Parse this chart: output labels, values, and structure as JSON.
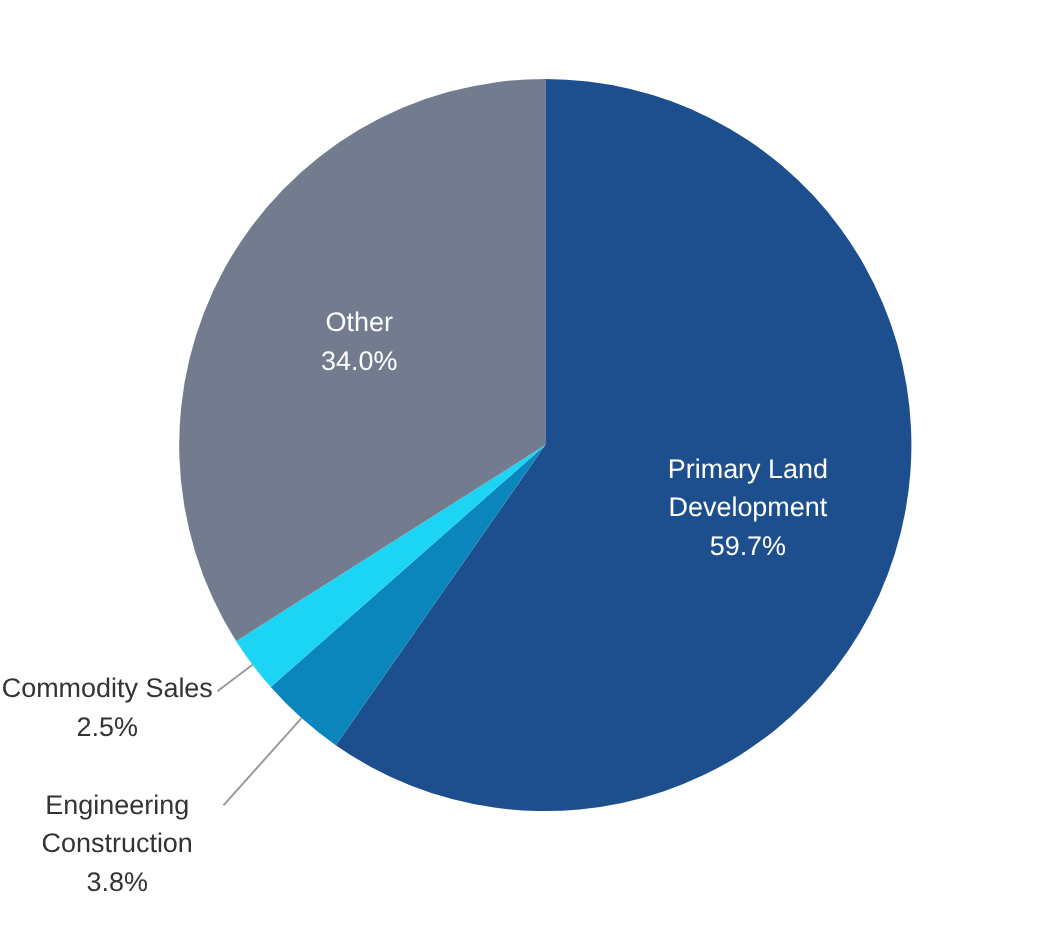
{
  "chart_data": {
    "type": "pie",
    "categories": [
      "Primary Land Development",
      "Engineering Construction",
      "Commodity Sales",
      "Other"
    ],
    "values": [
      59.7,
      3.8,
      2.5,
      34.0
    ],
    "value_labels": [
      "59.7%",
      "3.8%",
      "2.5%",
      "34.0%"
    ],
    "colors": [
      "#1d4f8f",
      "#0a86bd",
      "#1cd4f4",
      "#737c8e"
    ],
    "legend": false
  }
}
